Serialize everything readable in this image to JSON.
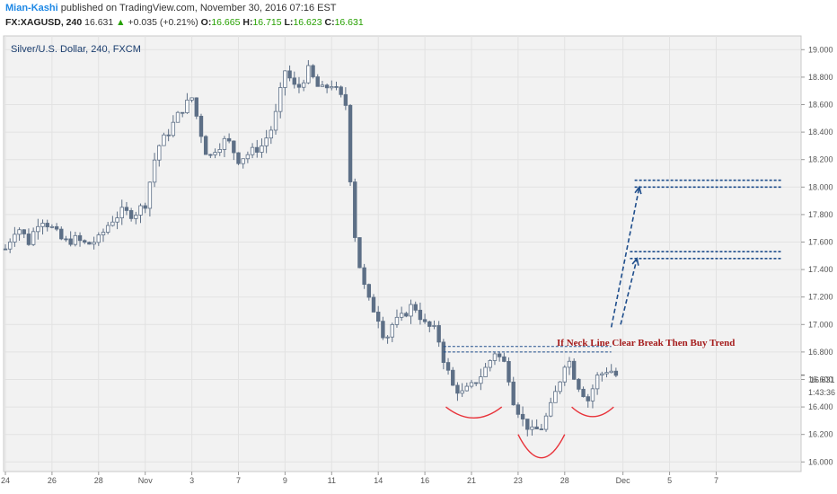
{
  "header": {
    "author": "Mian-Kashi",
    "published": " published on TradingView.com, November 30, 2016 07:16 EST",
    "symbol": "FX:XAGUSD, 240",
    "last": "16.631",
    "change_arrow": "▲",
    "change": "+0.035 (+0.21%)",
    "o_label": "O:",
    "o_value": "16.665",
    "h_label": "H:",
    "h_value": "16.715",
    "l_label": "L:",
    "l_value": "16.623",
    "c_label": "C:",
    "c_value": "16.631"
  },
  "chart_data": {
    "type": "candlestick",
    "series_label": "Silver/U.S. Dollar, 240, FXCM",
    "timeframe": "240",
    "x_ticks": [
      {
        "label": "24",
        "day": 0
      },
      {
        "label": "26",
        "day": 2
      },
      {
        "label": "28",
        "day": 4
      },
      {
        "label": "Nov",
        "day": 6
      },
      {
        "label": "3",
        "day": 8
      },
      {
        "label": "7",
        "day": 10
      },
      {
        "label": "9",
        "day": 12
      },
      {
        "label": "11",
        "day": 14
      },
      {
        "label": "14",
        "day": 16
      },
      {
        "label": "16",
        "day": 18
      },
      {
        "label": "21",
        "day": 20
      },
      {
        "label": "23",
        "day": 22
      },
      {
        "label": "28",
        "day": 24
      },
      {
        "label": "Dec",
        "day": 26.5
      },
      {
        "label": "5",
        "day": 28.5
      },
      {
        "label": "7",
        "day": 30.5
      }
    ],
    "y_ticks": [
      16.0,
      16.2,
      16.4,
      16.6,
      16.8,
      17.0,
      17.2,
      17.4,
      17.6,
      17.8,
      18.0,
      18.2,
      18.4,
      18.6,
      18.8,
      19.0
    ],
    "y_range": [
      15.93,
      19.1
    ],
    "last_price": "16.631",
    "countdown": "1:43:36",
    "anchors": [
      {
        "day": 0.0,
        "price": 17.55
      },
      {
        "day": 0.5,
        "price": 17.72
      },
      {
        "day": 1.0,
        "price": 17.6
      },
      {
        "day": 1.5,
        "price": 17.78
      },
      {
        "day": 2.0,
        "price": 17.7
      },
      {
        "day": 2.5,
        "price": 17.6
      },
      {
        "day": 3.0,
        "price": 17.62
      },
      {
        "day": 3.5,
        "price": 17.58
      },
      {
        "day": 4.0,
        "price": 17.62
      },
      {
        "day": 4.5,
        "price": 17.75
      },
      {
        "day": 5.0,
        "price": 17.82
      },
      {
        "day": 5.5,
        "price": 17.8
      },
      {
        "day": 6.0,
        "price": 17.88
      },
      {
        "day": 6.5,
        "price": 18.28
      },
      {
        "day": 7.0,
        "price": 18.4
      },
      {
        "day": 7.5,
        "price": 18.55
      },
      {
        "day": 8.0,
        "price": 18.65
      },
      {
        "day": 8.3,
        "price": 18.45
      },
      {
        "day": 8.7,
        "price": 18.2
      },
      {
        "day": 9.0,
        "price": 18.28
      },
      {
        "day": 9.5,
        "price": 18.35
      },
      {
        "day": 10.0,
        "price": 18.2
      },
      {
        "day": 10.5,
        "price": 18.25
      },
      {
        "day": 11.0,
        "price": 18.3
      },
      {
        "day": 11.5,
        "price": 18.45
      },
      {
        "day": 12.0,
        "price": 18.85
      },
      {
        "day": 12.5,
        "price": 18.7
      },
      {
        "day": 13.0,
        "price": 18.85
      },
      {
        "day": 13.5,
        "price": 18.7
      },
      {
        "day": 14.0,
        "price": 18.75
      },
      {
        "day": 14.6,
        "price": 18.6
      },
      {
        "day": 14.9,
        "price": 17.8
      },
      {
        "day": 15.1,
        "price": 17.5
      },
      {
        "day": 15.5,
        "price": 17.2
      },
      {
        "day": 16.0,
        "price": 17.05
      },
      {
        "day": 16.3,
        "price": 16.88
      },
      {
        "day": 16.6,
        "price": 17.0
      },
      {
        "day": 17.0,
        "price": 17.05
      },
      {
        "day": 17.5,
        "price": 17.15
      },
      {
        "day": 18.0,
        "price": 17.0
      },
      {
        "day": 18.5,
        "price": 16.95
      },
      {
        "day": 18.8,
        "price": 16.75
      },
      {
        "day": 19.2,
        "price": 16.55
      },
      {
        "day": 19.6,
        "price": 16.5
      },
      {
        "day": 20.0,
        "price": 16.55
      },
      {
        "day": 20.5,
        "price": 16.65
      },
      {
        "day": 21.0,
        "price": 16.8
      },
      {
        "day": 21.5,
        "price": 16.7
      },
      {
        "day": 21.8,
        "price": 16.45
      },
      {
        "day": 22.2,
        "price": 16.3
      },
      {
        "day": 22.6,
        "price": 16.22
      },
      {
        "day": 23.0,
        "price": 16.25
      },
      {
        "day": 23.4,
        "price": 16.4
      },
      {
        "day": 23.8,
        "price": 16.6
      },
      {
        "day": 24.1,
        "price": 16.78
      },
      {
        "day": 24.5,
        "price": 16.58
      },
      {
        "day": 25.0,
        "price": 16.45
      },
      {
        "day": 25.4,
        "price": 16.62
      },
      {
        "day": 25.9,
        "price": 16.68
      },
      {
        "day": 26.2,
        "price": 16.63
      }
    ],
    "drawings": {
      "neckline": [
        {
          "day1": 18.8,
          "day2": 26.0,
          "price": 16.84
        },
        {
          "day1": 18.8,
          "day2": 26.0,
          "price": 16.8
        }
      ],
      "targets": [
        {
          "day1": 27.0,
          "day2": 33.3,
          "price": 18.05
        },
        {
          "day1": 27.0,
          "day2": 33.3,
          "price": 18.0
        },
        {
          "day1": 26.8,
          "day2": 33.3,
          "price": 17.53
        },
        {
          "day1": 26.8,
          "day2": 33.3,
          "price": 17.48
        }
      ],
      "arrows": [
        {
          "x1": 26.0,
          "y1": 16.98,
          "x2": 27.2,
          "y2": 18.0
        },
        {
          "x1": 26.4,
          "y1": 17.0,
          "x2": 27.1,
          "y2": 17.48
        }
      ],
      "arcs": [
        {
          "day1": 18.9,
          "day2": 21.3,
          "top": 16.4,
          "bottom": 16.32
        },
        {
          "day1": 22.0,
          "day2": 24.0,
          "top": 16.2,
          "bottom": 16.03
        },
        {
          "day1": 24.3,
          "day2": 26.1,
          "top": 16.4,
          "bottom": 16.33
        }
      ]
    },
    "annotation": {
      "text": "If Neck Line Clear Break Then Buy Trend",
      "day": 21.9,
      "price": 16.87
    },
    "colors": {
      "candle": "#5d6f86",
      "plot_bg": "#f2f2f2",
      "arc": "#e8333a",
      "drawing": "#1f4e8c",
      "annotation": "#a51c1c"
    }
  }
}
